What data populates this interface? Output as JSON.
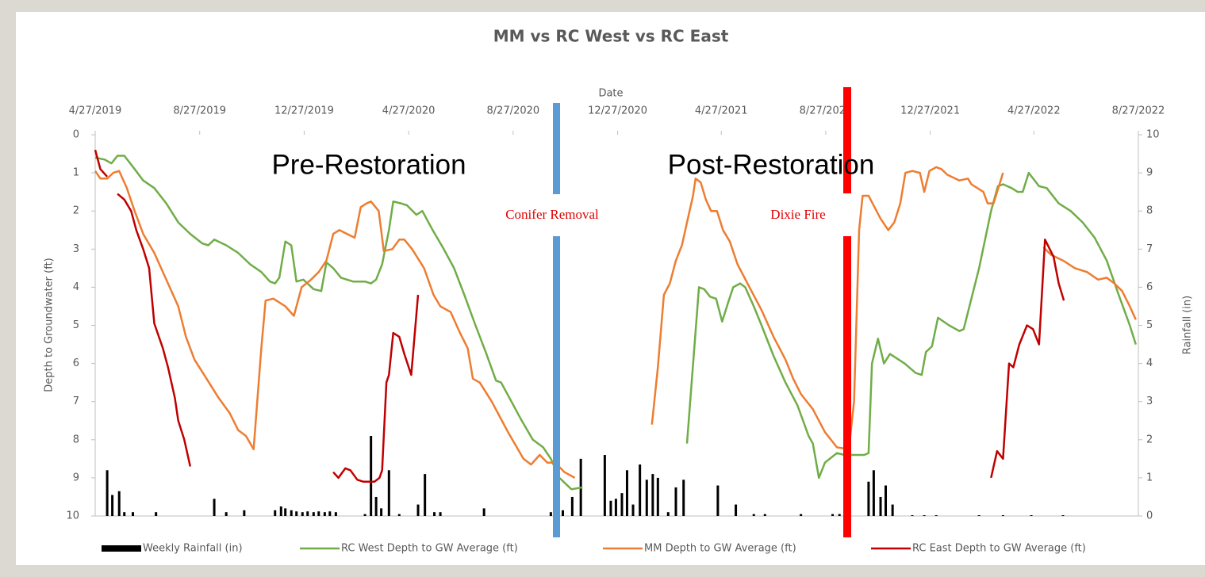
{
  "chart_data": {
    "type": "line",
    "title": "MM vs RC West vs RC East",
    "x_label": "Date",
    "y_label": "Depth to Groundwater (ft)",
    "y2_label": "Rainfall (in)",
    "annotations": [
      "Pre-Restoration",
      "Post-Restoration",
      "Conifer Removal",
      "Dixie Fire"
    ],
    "xlim": [
      "2019-04-27",
      "2022-08-27"
    ],
    "xticks": [
      {
        "value": "2019-04-27",
        "label": "4/27/2019"
      },
      {
        "value": "2019-08-27",
        "label": "8/27/2019"
      },
      {
        "value": "2019-12-27",
        "label": "12/27/2019"
      },
      {
        "value": "2020-04-27",
        "label": "4/27/2020"
      },
      {
        "value": "2020-08-27",
        "label": "8/27/2020"
      },
      {
        "value": "2020-12-27",
        "label": "12/27/2020"
      },
      {
        "value": "2021-04-27",
        "label": "4/27/2021"
      },
      {
        "value": "2021-08-27",
        "label": "8/27/2021"
      },
      {
        "value": "2021-12-27",
        "label": "12/27/2021"
      },
      {
        "value": "2022-04-27",
        "label": "4/27/2022"
      },
      {
        "value": "2022-08-27",
        "label": "8/27/2022"
      }
    ],
    "ylim": [
      0,
      10
    ],
    "y_inverted": true,
    "yticks": [
      0,
      1,
      2,
      3,
      4,
      5,
      6,
      7,
      8,
      9,
      10
    ],
    "y2lim": [
      0,
      10
    ],
    "y2ticks": [
      0,
      1,
      2,
      3,
      4,
      5,
      6,
      7,
      8,
      9,
      10
    ],
    "legend": "bottom",
    "series": [
      {
        "name": "Weekly Rainfall (in)",
        "type": "bar",
        "axis": "y2",
        "color": "#000000",
        "x": [
          "2019-05-11",
          "2019-05-17",
          "2019-05-25",
          "2019-05-31",
          "2019-06-10",
          "2019-07-07",
          "2019-09-13",
          "2019-09-27",
          "2019-10-18",
          "2019-11-23",
          "2019-11-30",
          "2019-12-05",
          "2019-12-12",
          "2019-12-18",
          "2019-12-25",
          "2019-12-31",
          "2020-01-07",
          "2020-01-13",
          "2020-01-20",
          "2020-01-26",
          "2020-02-02",
          "2020-03-07",
          "2020-03-14",
          "2020-03-20",
          "2020-03-26",
          "2020-04-04",
          "2020-04-16",
          "2020-05-08",
          "2020-05-16",
          "2020-05-27",
          "2020-06-03",
          "2020-07-24",
          "2020-10-10",
          "2020-10-17",
          "2020-10-24",
          "2020-11-04",
          "2020-11-14",
          "2020-12-12",
          "2020-12-19",
          "2020-12-25",
          "2021-01-01",
          "2021-01-07",
          "2021-01-14",
          "2021-01-22",
          "2021-01-30",
          "2021-02-06",
          "2021-02-12",
          "2021-02-24",
          "2021-03-05",
          "2021-03-14",
          "2021-04-23",
          "2021-05-14",
          "2021-06-04",
          "2021-06-17",
          "2021-07-29",
          "2021-09-04",
          "2021-09-12",
          "2021-10-16",
          "2021-10-22",
          "2021-10-30",
          "2021-11-05",
          "2021-11-13",
          "2021-12-06",
          "2021-12-20",
          "2022-01-03",
          "2022-02-22",
          "2022-03-22",
          "2022-04-24",
          "2022-05-31"
        ],
        "values": [
          1.2,
          0.55,
          0.65,
          0.1,
          0.1,
          0.1,
          0.45,
          0.1,
          0.15,
          0.15,
          0.25,
          0.2,
          0.15,
          0.12,
          0.1,
          0.12,
          0.1,
          0.12,
          0.1,
          0.12,
          0.1,
          0.05,
          2.1,
          0.5,
          0.2,
          1.2,
          0.05,
          0.3,
          1.1,
          0.1,
          0.1,
          0.2,
          0.1,
          0.3,
          0.15,
          0.5,
          1.5,
          1.6,
          0.4,
          0.45,
          0.6,
          1.2,
          0.3,
          1.35,
          0.95,
          1.1,
          1.0,
          0.1,
          0.75,
          0.95,
          0.8,
          0.3,
          0.05,
          0.05,
          0.05,
          0.05,
          0.05,
          0.9,
          1.2,
          0.5,
          0.8,
          0.3,
          0.02,
          0.02,
          0.02,
          0.02,
          0.02,
          0.02,
          0.02
        ]
      },
      {
        "name": "RC West Depth to GW Average (ft)",
        "type": "line",
        "axis": "y",
        "color": "#70ad47",
        "x": [
          "2019-04-27",
          "2019-05-08",
          "2019-05-16",
          "2019-05-23",
          "2019-05-31",
          "2019-06-12",
          "2019-06-22",
          "2019-07-05",
          "2019-07-19",
          "2019-08-02",
          "2019-08-16",
          "2019-08-30",
          "2019-09-06",
          "2019-09-13",
          "2019-09-27",
          "2019-10-11",
          "2019-10-25",
          "2019-11-07",
          "2019-11-17",
          "2019-11-23",
          "2019-11-28",
          "2019-12-05",
          "2019-12-12",
          "2019-12-18",
          "2019-12-26",
          "2020-01-07",
          "2020-01-16",
          "2020-01-22",
          "2020-01-30",
          "2020-02-08",
          "2020-02-22",
          "2020-03-07",
          "2020-03-14",
          "2020-03-20",
          "2020-03-27",
          "2020-04-04",
          "2020-04-09",
          "2020-04-18",
          "2020-04-25",
          "2020-05-06",
          "2020-05-13",
          "2020-05-25",
          "2020-06-07",
          "2020-06-19",
          "2020-07-01",
          "2020-07-14",
          "2020-07-26",
          "2020-08-07",
          "2020-08-13",
          "2020-08-25",
          "2020-09-06",
          "2020-09-19",
          "2020-10-01",
          "2020-10-10",
          "2020-10-20",
          "2020-11-03",
          "2020-11-16",
          "2021-01-15",
          "2021-03-18",
          "2021-04-01",
          "2021-04-07",
          "2021-04-14",
          "2021-04-21",
          "2021-04-28",
          "2021-05-05",
          "2021-05-11",
          "2021-05-19",
          "2021-05-25",
          "2021-06-04",
          "2021-06-13",
          "2021-06-27",
          "2021-07-11",
          "2021-07-25",
          "2021-08-07",
          "2021-08-12",
          "2021-08-19",
          "2021-08-26",
          "2021-09-09",
          "2021-09-18",
          "2021-10-02",
          "2021-10-11",
          "2021-10-16",
          "2021-10-20",
          "2021-10-27",
          "2021-11-03",
          "2021-11-10",
          "2021-11-27",
          "2021-12-10",
          "2021-12-17",
          "2021-12-22",
          "2021-12-29",
          "2022-01-05",
          "2022-01-18",
          "2022-01-30",
          "2022-02-04",
          "2022-02-22",
          "2022-03-08",
          "2022-03-16",
          "2022-03-22",
          "2022-04-01",
          "2022-04-08",
          "2022-04-14",
          "2022-04-21",
          "2022-05-03",
          "2022-05-12",
          "2022-05-26",
          "2022-06-09",
          "2022-06-23",
          "2022-07-07",
          "2022-07-21",
          "2022-08-04",
          "2022-08-17",
          "2022-08-24"
        ],
        "values": [
          0.6,
          0.65,
          0.75,
          0.55,
          0.55,
          0.9,
          1.2,
          1.4,
          1.8,
          2.3,
          2.6,
          2.85,
          2.9,
          2.75,
          2.9,
          3.1,
          3.4,
          3.6,
          3.85,
          3.9,
          3.75,
          2.8,
          2.9,
          3.85,
          3.8,
          4.05,
          4.1,
          3.35,
          3.5,
          3.75,
          3.85,
          3.85,
          3.9,
          3.8,
          3.4,
          2.5,
          1.75,
          1.8,
          1.85,
          2.1,
          2.0,
          2.5,
          3.0,
          3.5,
          4.2,
          5.0,
          5.7,
          6.45,
          6.5,
          7.0,
          7.5,
          8.0,
          8.2,
          8.5,
          9.0,
          9.3,
          9.25,
          null,
          8.1,
          4.0,
          4.05,
          4.25,
          4.3,
          4.9,
          4.4,
          4.0,
          3.9,
          4.0,
          4.5,
          5.0,
          5.8,
          6.5,
          7.1,
          7.9,
          8.1,
          9.0,
          8.6,
          8.35,
          8.4,
          8.4,
          8.4,
          8.35,
          6.0,
          5.35,
          6.0,
          5.75,
          6.0,
          6.25,
          6.3,
          5.7,
          5.55,
          4.8,
          5.0,
          5.15,
          5.1,
          3.5,
          2.0,
          1.35,
          1.3,
          1.4,
          1.5,
          1.5,
          1.0,
          1.35,
          1.4,
          1.8,
          2.0,
          2.3,
          2.7,
          3.3,
          4.2,
          5.0,
          5.5
        ]
      },
      {
        "name": "MM Depth to GW Average (ft)",
        "type": "line",
        "axis": "y",
        "color": "#ed7d31",
        "x": [
          "2019-04-27",
          "2019-05-03",
          "2019-05-11",
          "2019-05-18",
          "2019-05-25",
          "2019-06-03",
          "2019-06-12",
          "2019-06-22",
          "2019-07-05",
          "2019-07-19",
          "2019-08-02",
          "2019-08-11",
          "2019-08-21",
          "2019-09-04",
          "2019-09-18",
          "2019-10-01",
          "2019-10-11",
          "2019-10-20",
          "2019-10-29",
          "2019-11-07",
          "2019-11-12",
          "2019-11-21",
          "2019-12-05",
          "2019-12-15",
          "2019-12-24",
          "2020-01-04",
          "2020-01-13",
          "2020-01-22",
          "2020-01-30",
          "2020-02-06",
          "2020-02-15",
          "2020-02-24",
          "2020-03-02",
          "2020-03-09",
          "2020-03-14",
          "2020-03-23",
          "2020-03-29",
          "2020-04-08",
          "2020-04-16",
          "2020-04-22",
          "2020-05-01",
          "2020-05-15",
          "2020-05-26",
          "2020-06-03",
          "2020-06-15",
          "2020-06-26",
          "2020-07-05",
          "2020-07-11",
          "2020-07-19",
          "2020-08-02",
          "2020-08-21",
          "2020-09-08",
          "2020-09-17",
          "2020-09-27",
          "2020-10-06",
          "2020-10-15",
          "2020-10-26",
          "2020-11-07",
          "2020-12-15",
          "2021-02-05",
          "2021-02-12",
          "2021-02-19",
          "2021-02-26",
          "2021-03-05",
          "2021-03-12",
          "2021-03-19",
          "2021-03-25",
          "2021-03-28",
          "2021-04-03",
          "2021-04-09",
          "2021-04-15",
          "2021-04-22",
          "2021-04-29",
          "2021-05-07",
          "2021-05-16",
          "2021-05-30",
          "2021-06-13",
          "2021-06-27",
          "2021-07-11",
          "2021-07-20",
          "2021-07-29",
          "2021-08-12",
          "2021-08-26",
          "2021-09-09",
          "2021-09-23",
          "2021-09-29",
          "2021-10-05",
          "2021-10-09",
          "2021-10-16",
          "2021-10-30",
          "2021-11-08",
          "2021-11-15",
          "2021-11-22",
          "2021-11-28",
          "2021-12-06",
          "2021-12-15",
          "2021-12-20",
          "2021-12-26",
          "2022-01-03",
          "2022-01-09",
          "2022-01-16",
          "2022-01-30",
          "2022-02-09",
          "2022-02-13",
          "2022-02-27",
          "2022-03-04",
          "2022-03-11",
          "2022-03-22",
          "2022-04-10",
          "2022-05-08",
          "2022-05-17",
          "2022-05-31",
          "2022-06-14",
          "2022-06-28",
          "2022-07-11",
          "2022-07-21",
          "2022-07-30",
          "2022-08-08",
          "2022-08-17",
          "2022-08-24"
        ],
        "values": [
          0.95,
          1.15,
          1.15,
          1.0,
          0.95,
          1.4,
          2.0,
          2.6,
          3.1,
          3.8,
          4.5,
          5.3,
          5.9,
          6.4,
          6.9,
          7.3,
          7.75,
          7.9,
          8.25,
          5.6,
          4.35,
          4.3,
          4.5,
          4.75,
          4.0,
          3.8,
          3.6,
          3.3,
          2.6,
          2.5,
          2.6,
          2.7,
          1.9,
          1.8,
          1.75,
          2.0,
          3.05,
          3.0,
          2.75,
          2.75,
          3.0,
          3.5,
          4.2,
          4.5,
          4.65,
          5.2,
          5.6,
          6.4,
          6.5,
          7.0,
          7.8,
          8.5,
          8.65,
          8.4,
          8.6,
          8.6,
          8.85,
          9.0,
          null,
          7.6,
          6.1,
          4.2,
          3.9,
          3.3,
          2.9,
          2.2,
          1.6,
          1.15,
          1.25,
          1.7,
          2.0,
          2.0,
          2.5,
          2.8,
          3.4,
          4.0,
          4.6,
          5.3,
          5.9,
          6.4,
          6.8,
          7.2,
          7.8,
          8.2,
          8.25,
          7.0,
          2.5,
          1.6,
          1.6,
          2.2,
          2.5,
          2.3,
          1.8,
          1.0,
          0.95,
          1.0,
          1.5,
          0.95,
          0.85,
          0.9,
          1.05,
          1.2,
          1.15,
          1.3,
          1.5,
          1.8,
          1.8,
          1.0,
          null,
          2.95,
          3.15,
          3.3,
          3.5,
          3.6,
          3.8,
          3.75,
          3.9,
          4.1,
          4.5,
          4.85
        ]
      },
      {
        "name": "RC East Depth to GW Average (ft)",
        "type": "line",
        "axis": "y",
        "color": "#c00000",
        "x": [
          "2019-04-27",
          "2019-05-03",
          "2019-05-11",
          "2019-05-16",
          "2019-05-23",
          "2019-05-31",
          "2019-06-08",
          "2019-06-14",
          "2019-06-22",
          "2019-06-29",
          "2019-07-05",
          "2019-07-15",
          "2019-07-21",
          "2019-07-29",
          "2019-08-02",
          "2019-08-09",
          "2019-08-16",
          "2019-12-01",
          "2020-01-30",
          "2020-02-05",
          "2020-02-13",
          "2020-02-19",
          "2020-02-27",
          "2020-03-05",
          "2020-03-11",
          "2020-03-18",
          "2020-03-24",
          "2020-03-27",
          "2020-04-01",
          "2020-04-04",
          "2020-04-09",
          "2020-04-16",
          "2020-04-22",
          "2020-04-30",
          "2020-05-08",
          "2021-06-01",
          "2022-03-08",
          "2022-03-15",
          "2022-03-22",
          "2022-03-29",
          "2022-04-03",
          "2022-04-10",
          "2022-04-19",
          "2022-04-26",
          "2022-05-03",
          "2022-05-10",
          "2022-05-20",
          "2022-05-26",
          "2022-06-01"
        ],
        "values": [
          0.4,
          0.9,
          1.1,
          null,
          1.55,
          1.7,
          2.0,
          2.5,
          3.0,
          3.5,
          4.95,
          5.6,
          6.1,
          6.9,
          7.5,
          8.0,
          8.7,
          null,
          8.85,
          9.0,
          8.75,
          8.8,
          9.05,
          9.1,
          9.1,
          9.1,
          9.0,
          8.8,
          6.5,
          6.3,
          5.2,
          5.3,
          5.75,
          6.3,
          4.2,
          null,
          9.0,
          8.3,
          8.5,
          6.0,
          6.1,
          5.5,
          5.0,
          5.1,
          5.5,
          2.75,
          3.2,
          3.9,
          4.35
        ]
      }
    ]
  }
}
